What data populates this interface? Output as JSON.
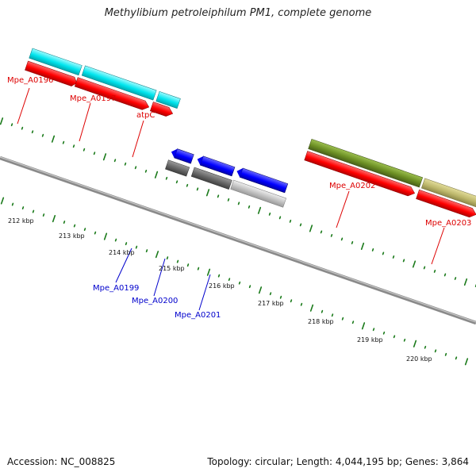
{
  "title": "Methylibium petroleiphilum PM1, complete genome",
  "footer": {
    "accession": "Accession: NC_008825",
    "summary": "Topology: circular; Length: 4,044,195 bp; Genes: 3,864"
  },
  "colors": {
    "forward_label": "#dd0000",
    "reverse_label": "#0000cc",
    "backbone": "#8a8a8a",
    "ticks": "#1a7a1a",
    "cds_forward": "#ff0000",
    "cds_reverse": "#0000ff",
    "feature_cyan": "#00e5ee",
    "feature_olive": "#6b8e23",
    "feature_khaki": "#bdb76b",
    "feature_pink": "#f08080",
    "feature_dark_gray": "#666666",
    "feature_light_gray": "#c0c0c0"
  },
  "scale_labels": [
    "212 kbp",
    "213 kbp",
    "214 kbp",
    "215 kbp",
    "216 kbp",
    "217 kbp",
    "218 kbp",
    "219 kbp",
    "220 kbp"
  ],
  "forward_genes": [
    {
      "label": "Mpe_A0196"
    },
    {
      "label": "Mpe_A0197"
    },
    {
      "label": "atpC"
    },
    {
      "label": "Mpe_A0202"
    },
    {
      "label": "Mpe_A0203"
    }
  ],
  "reverse_genes": [
    {
      "label": "Mpe_A0199"
    },
    {
      "label": "Mpe_A0200"
    },
    {
      "label": "Mpe_A0201"
    }
  ]
}
